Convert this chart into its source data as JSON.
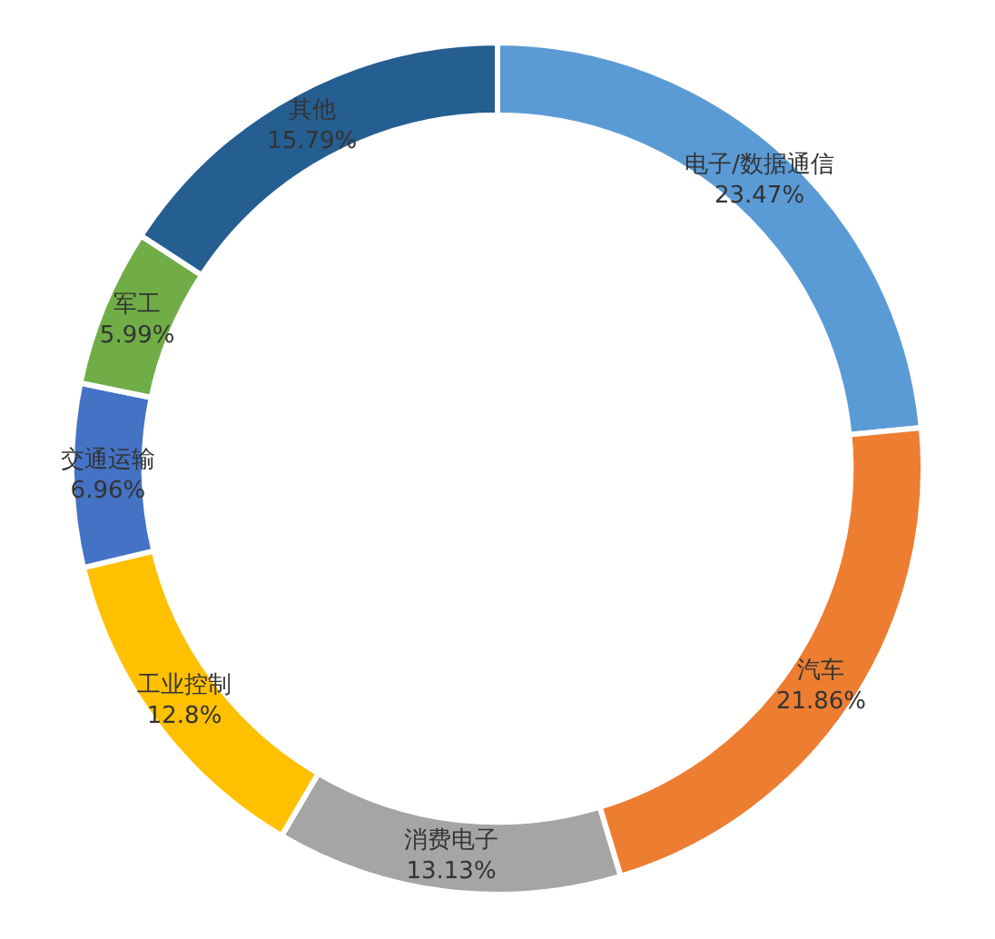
{
  "chart_data": {
    "type": "donut",
    "categories": [
      "电子/数据通信",
      "汽车",
      "消费电子",
      "工业控制",
      "交通运输",
      "军工",
      "其他"
    ],
    "values": [
      23.47,
      21.86,
      13.13,
      12.8,
      6.96,
      5.99,
      15.79
    ],
    "value_labels": [
      "23.47%",
      "21.86%",
      "13.13%",
      "12.8%",
      "6.96%",
      "5.99%",
      "15.79%"
    ],
    "colors": [
      "#5b9bd5",
      "#ed7d31",
      "#a5a5a5",
      "#ffc000",
      "#4472c4",
      "#70ad47",
      "#255e91"
    ],
    "legend": false
  }
}
